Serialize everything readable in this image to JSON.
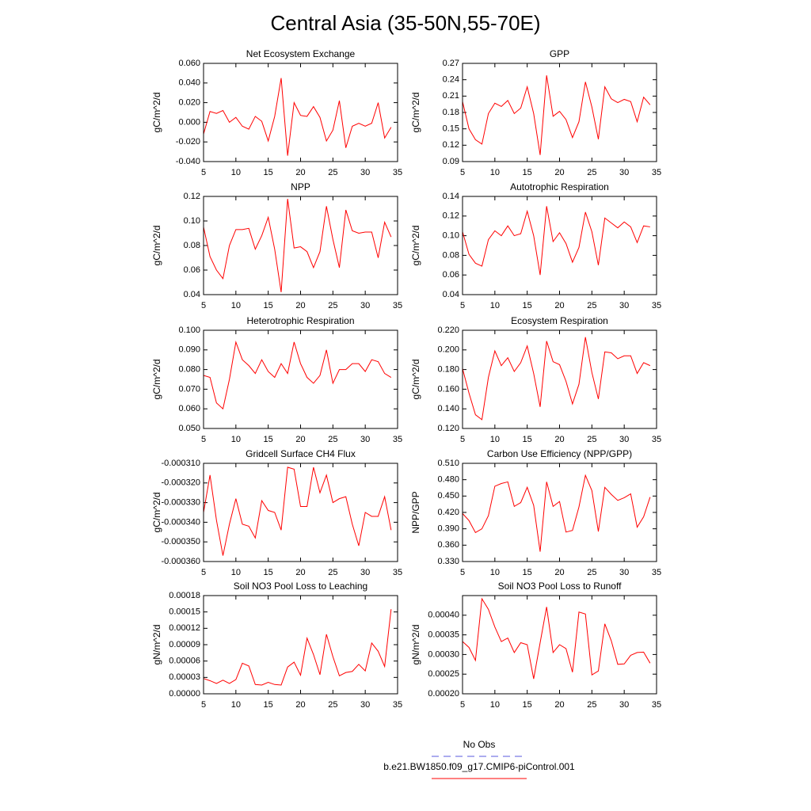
{
  "title": "Central Asia (35-50N,55-70E)",
  "legend": [
    {
      "name": "No Obs",
      "color": "#5a5adc",
      "dash": true
    },
    {
      "name": "b.e21.BW1850.f09_g17.CMIP6-piControl.001",
      "color": "#ff0000",
      "dash": false
    }
  ],
  "chart_data": [
    {
      "type": "line",
      "title": "Net Ecosystem Exchange",
      "ylabel": "gC/m^2/d",
      "color": "#ff0000",
      "x": [
        5,
        6,
        7,
        8,
        9,
        10,
        11,
        12,
        13,
        14,
        15,
        16,
        17,
        18,
        19,
        20,
        21,
        22,
        23,
        24,
        25,
        26,
        27,
        28,
        29,
        30,
        31,
        32,
        33,
        34
      ],
      "values": [
        -0.012,
        0.011,
        0.009,
        0.012,
        0.0,
        0.005,
        -0.004,
        -0.007,
        0.006,
        0.001,
        -0.019,
        0.006,
        0.045,
        -0.034,
        0.02,
        0.007,
        0.006,
        0.016,
        0.005,
        -0.019,
        -0.008,
        0.022,
        -0.026,
        -0.004,
        -0.001,
        -0.004,
        -0.001,
        0.02,
        -0.016,
        -0.005
      ],
      "xlim": [
        5,
        35
      ],
      "xticks": [
        5,
        10,
        15,
        20,
        25,
        30,
        35
      ],
      "ylim": [
        -0.04,
        0.06
      ],
      "yticks": [
        {
          "value": -0.04,
          "label": "-0.040"
        },
        {
          "value": -0.02,
          "label": "-0.020"
        },
        {
          "value": 0,
          "label": "0.000"
        },
        {
          "value": 0.02,
          "label": "0.020"
        },
        {
          "value": 0.04,
          "label": "0.040"
        },
        {
          "value": 0.06,
          "label": "0.060"
        }
      ]
    },
    {
      "type": "line",
      "title": "GPP",
      "ylabel": "gC/m^2/d",
      "color": "#ff0000",
      "x": [
        5,
        6,
        7,
        8,
        9,
        10,
        11,
        12,
        13,
        14,
        15,
        16,
        17,
        18,
        19,
        20,
        21,
        22,
        23,
        24,
        25,
        26,
        27,
        28,
        29,
        30,
        31,
        32,
        33,
        34
      ],
      "values": [
        0.2,
        0.15,
        0.13,
        0.122,
        0.178,
        0.197,
        0.191,
        0.202,
        0.178,
        0.188,
        0.227,
        0.178,
        0.102,
        0.248,
        0.173,
        0.182,
        0.167,
        0.134,
        0.163,
        0.236,
        0.19,
        0.131,
        0.227,
        0.205,
        0.198,
        0.204,
        0.2,
        0.163,
        0.208,
        0.194
      ],
      "xlim": [
        5,
        35
      ],
      "xticks": [
        5,
        10,
        15,
        20,
        25,
        30,
        35
      ],
      "ylim": [
        0.09,
        0.27
      ],
      "yticks": [
        {
          "value": 0.09,
          "label": "0.09"
        },
        {
          "value": 0.12,
          "label": "0.12"
        },
        {
          "value": 0.15,
          "label": "0.15"
        },
        {
          "value": 0.18,
          "label": "0.18"
        },
        {
          "value": 0.21,
          "label": "0.21"
        },
        {
          "value": 0.24,
          "label": "0.24"
        },
        {
          "value": 0.27,
          "label": "0.27"
        }
      ]
    },
    {
      "type": "line",
      "title": "NPP",
      "ylabel": "gC/m^2/d",
      "color": "#ff0000",
      "x": [
        5,
        6,
        7,
        8,
        9,
        10,
        11,
        12,
        13,
        14,
        15,
        16,
        17,
        18,
        19,
        20,
        21,
        22,
        23,
        24,
        25,
        26,
        27,
        28,
        29,
        30,
        31,
        32,
        33,
        34
      ],
      "values": [
        0.095,
        0.071,
        0.06,
        0.053,
        0.08,
        0.093,
        0.093,
        0.094,
        0.077,
        0.088,
        0.103,
        0.077,
        0.042,
        0.118,
        0.078,
        0.079,
        0.075,
        0.062,
        0.075,
        0.112,
        0.085,
        0.062,
        0.109,
        0.092,
        0.09,
        0.091,
        0.091,
        0.07,
        0.099,
        0.087
      ],
      "xlim": [
        5,
        35
      ],
      "xticks": [
        5,
        10,
        15,
        20,
        25,
        30,
        35
      ],
      "ylim": [
        0.04,
        0.12
      ],
      "yticks": [
        {
          "value": 0.04,
          "label": "0.04"
        },
        {
          "value": 0.06,
          "label": "0.06"
        },
        {
          "value": 0.08,
          "label": "0.08"
        },
        {
          "value": 0.1,
          "label": "0.10"
        },
        {
          "value": 0.12,
          "label": "0.12"
        }
      ]
    },
    {
      "type": "line",
      "title": "Autotrophic Respiration",
      "ylabel": "gC/m^2/d",
      "color": "#ff0000",
      "x": [
        5,
        6,
        7,
        8,
        9,
        10,
        11,
        12,
        13,
        14,
        15,
        16,
        17,
        18,
        19,
        20,
        21,
        22,
        23,
        24,
        25,
        26,
        27,
        28,
        29,
        30,
        31,
        32,
        33,
        34
      ],
      "values": [
        0.104,
        0.081,
        0.072,
        0.069,
        0.096,
        0.105,
        0.1,
        0.11,
        0.1,
        0.102,
        0.125,
        0.1,
        0.06,
        0.13,
        0.094,
        0.103,
        0.092,
        0.073,
        0.088,
        0.124,
        0.104,
        0.07,
        0.118,
        0.113,
        0.108,
        0.114,
        0.109,
        0.093,
        0.11,
        0.109
      ],
      "xlim": [
        5,
        35
      ],
      "xticks": [
        5,
        10,
        15,
        20,
        25,
        30,
        35
      ],
      "ylim": [
        0.04,
        0.14
      ],
      "yticks": [
        {
          "value": 0.04,
          "label": "0.04"
        },
        {
          "value": 0.06,
          "label": "0.06"
        },
        {
          "value": 0.08,
          "label": "0.08"
        },
        {
          "value": 0.1,
          "label": "0.10"
        },
        {
          "value": 0.12,
          "label": "0.12"
        },
        {
          "value": 0.14,
          "label": "0.14"
        }
      ]
    },
    {
      "type": "line",
      "title": "Heterotrophic Respiration",
      "ylabel": "gC/m^2/d",
      "color": "#ff0000",
      "x": [
        5,
        6,
        7,
        8,
        9,
        10,
        11,
        12,
        13,
        14,
        15,
        16,
        17,
        18,
        19,
        20,
        21,
        22,
        23,
        24,
        25,
        26,
        27,
        28,
        29,
        30,
        31,
        32,
        33,
        34
      ],
      "values": [
        0.077,
        0.076,
        0.063,
        0.06,
        0.075,
        0.094,
        0.085,
        0.082,
        0.078,
        0.085,
        0.079,
        0.076,
        0.083,
        0.078,
        0.094,
        0.083,
        0.076,
        0.073,
        0.077,
        0.09,
        0.073,
        0.08,
        0.08,
        0.083,
        0.083,
        0.079,
        0.085,
        0.084,
        0.078,
        0.076
      ],
      "xlim": [
        5,
        35
      ],
      "xticks": [
        5,
        10,
        15,
        20,
        25,
        30,
        35
      ],
      "ylim": [
        0.05,
        0.1
      ],
      "yticks": [
        {
          "value": 0.05,
          "label": "0.050"
        },
        {
          "value": 0.06,
          "label": "0.060"
        },
        {
          "value": 0.07,
          "label": "0.070"
        },
        {
          "value": 0.08,
          "label": "0.080"
        },
        {
          "value": 0.09,
          "label": "0.090"
        },
        {
          "value": 0.1,
          "label": "0.100"
        }
      ]
    },
    {
      "type": "line",
      "title": "Ecosystem Respiration",
      "ylabel": "gC/m^2/d",
      "color": "#ff0000",
      "x": [
        5,
        6,
        7,
        8,
        9,
        10,
        11,
        12,
        13,
        14,
        15,
        16,
        17,
        18,
        19,
        20,
        21,
        22,
        23,
        24,
        25,
        26,
        27,
        28,
        29,
        30,
        31,
        32,
        33,
        34
      ],
      "values": [
        0.181,
        0.156,
        0.134,
        0.129,
        0.172,
        0.199,
        0.184,
        0.192,
        0.178,
        0.187,
        0.204,
        0.176,
        0.142,
        0.209,
        0.188,
        0.185,
        0.168,
        0.145,
        0.165,
        0.213,
        0.177,
        0.15,
        0.198,
        0.197,
        0.191,
        0.194,
        0.194,
        0.176,
        0.187,
        0.184
      ],
      "xlim": [
        5,
        35
      ],
      "xticks": [
        5,
        10,
        15,
        20,
        25,
        30,
        35
      ],
      "ylim": [
        0.12,
        0.22
      ],
      "yticks": [
        {
          "value": 0.12,
          "label": "0.120"
        },
        {
          "value": 0.14,
          "label": "0.140"
        },
        {
          "value": 0.16,
          "label": "0.160"
        },
        {
          "value": 0.18,
          "label": "0.180"
        },
        {
          "value": 0.2,
          "label": "0.200"
        },
        {
          "value": 0.22,
          "label": "0.220"
        }
      ]
    },
    {
      "type": "line",
      "title": "Gridcell Surface CH4 Flux",
      "ylabel": "gC/m^2/d",
      "color": "#ff0000",
      "x": [
        5,
        6,
        7,
        8,
        9,
        10,
        11,
        12,
        13,
        14,
        15,
        16,
        17,
        18,
        19,
        20,
        21,
        22,
        23,
        24,
        25,
        26,
        27,
        28,
        29,
        30,
        31,
        32,
        33,
        34
      ],
      "values": [
        -0.000335,
        -0.000316,
        -0.000339,
        -0.000357,
        -0.000341,
        -0.000328,
        -0.000341,
        -0.000342,
        -0.000348,
        -0.000329,
        -0.000334,
        -0.000335,
        -0.000344,
        -0.000312,
        -0.000313,
        -0.000332,
        -0.000332,
        -0.000312,
        -0.000325,
        -0.000316,
        -0.00033,
        -0.000328,
        -0.000327,
        -0.000341,
        -0.000352,
        -0.000335,
        -0.000337,
        -0.000337,
        -0.000327,
        -0.000344
      ],
      "xlim": [
        5,
        35
      ],
      "xticks": [
        5,
        10,
        15,
        20,
        25,
        30,
        35
      ],
      "ylim": [
        -0.00036,
        -0.00031
      ],
      "yticks": [
        {
          "value": -0.00036,
          "label": "-0.000360"
        },
        {
          "value": -0.00035,
          "label": "-0.000350"
        },
        {
          "value": -0.00034,
          "label": "-0.000340"
        },
        {
          "value": -0.00033,
          "label": "-0.000330"
        },
        {
          "value": -0.00032,
          "label": "-0.000320"
        },
        {
          "value": -0.00031,
          "label": "-0.000310"
        }
      ]
    },
    {
      "type": "line",
      "title": "Carbon Use Efficiency (NPP/GPP)",
      "ylabel": "NPP/GPP",
      "color": "#ff0000",
      "x": [
        5,
        6,
        7,
        8,
        9,
        10,
        11,
        12,
        13,
        14,
        15,
        16,
        17,
        18,
        19,
        20,
        21,
        22,
        23,
        24,
        25,
        26,
        27,
        28,
        29,
        30,
        31,
        32,
        33,
        34
      ],
      "values": [
        0.418,
        0.405,
        0.383,
        0.39,
        0.414,
        0.468,
        0.473,
        0.476,
        0.431,
        0.438,
        0.466,
        0.433,
        0.348,
        0.476,
        0.431,
        0.44,
        0.384,
        0.387,
        0.43,
        0.488,
        0.46,
        0.385,
        0.466,
        0.453,
        0.442,
        0.447,
        0.454,
        0.393,
        0.412,
        0.448
      ],
      "xlim": [
        5,
        35
      ],
      "xticks": [
        5,
        10,
        15,
        20,
        25,
        30,
        35
      ],
      "ylim": [
        0.33,
        0.51
      ],
      "yticks": [
        {
          "value": 0.33,
          "label": "0.330"
        },
        {
          "value": 0.36,
          "label": "0.360"
        },
        {
          "value": 0.39,
          "label": "0.390"
        },
        {
          "value": 0.42,
          "label": "0.420"
        },
        {
          "value": 0.45,
          "label": "0.450"
        },
        {
          "value": 0.48,
          "label": "0.480"
        },
        {
          "value": 0.51,
          "label": "0.510"
        }
      ]
    },
    {
      "type": "line",
      "title": "Soil NO3 Pool Loss to Leaching",
      "ylabel": "gN/m^2/d",
      "color": "#ff0000",
      "x": [
        5,
        6,
        7,
        8,
        9,
        10,
        11,
        12,
        13,
        14,
        15,
        16,
        17,
        18,
        19,
        20,
        21,
        22,
        23,
        24,
        25,
        26,
        27,
        28,
        29,
        30,
        31,
        32,
        33,
        34
      ],
      "values": [
        2.8e-05,
        2.4e-05,
        1.9e-05,
        2.5e-05,
        1.9e-05,
        2.6e-05,
        5.6e-05,
        5.1e-05,
        1.7e-05,
        1.6e-05,
        2.1e-05,
        1.7e-05,
        1.6e-05,
        4.9e-05,
        5.8e-05,
        3.4e-05,
        0.000102,
        7.2e-05,
        3.5e-05,
        0.000109,
        6.8e-05,
        3.3e-05,
        3.9e-05,
        4.1e-05,
        5.4e-05,
        4.2e-05,
        9.3e-05,
        7.8e-05,
        5e-05,
        0.000155
      ],
      "xlim": [
        5,
        35
      ],
      "xticks": [
        5,
        10,
        15,
        20,
        25,
        30,
        35
      ],
      "ylim": [
        0,
        0.00018
      ],
      "yticks": [
        {
          "value": 0,
          "label": "0.00000"
        },
        {
          "value": 3e-05,
          "label": "0.00003"
        },
        {
          "value": 6e-05,
          "label": "0.00006"
        },
        {
          "value": 9e-05,
          "label": "0.00009"
        },
        {
          "value": 0.00012,
          "label": "0.00012"
        },
        {
          "value": 0.00015,
          "label": "0.00015"
        },
        {
          "value": 0.00018,
          "label": "0.00018"
        }
      ]
    },
    {
      "type": "line",
      "title": "Soil NO3 Pool Loss to Runoff",
      "ylabel": "gN/m^2/d",
      "color": "#ff0000",
      "x": [
        5,
        6,
        7,
        8,
        9,
        10,
        11,
        12,
        13,
        14,
        15,
        16,
        17,
        18,
        19,
        20,
        21,
        22,
        23,
        24,
        25,
        26,
        27,
        28,
        29,
        30,
        31,
        32,
        33,
        34
      ],
      "values": [
        0.000333,
        0.000318,
        0.000285,
        0.000442,
        0.000415,
        0.00037,
        0.000333,
        0.000342,
        0.000305,
        0.00033,
        0.000325,
        0.000238,
        0.00033,
        0.000421,
        0.000305,
        0.000325,
        0.000315,
        0.000255,
        0.000408,
        0.000403,
        0.000248,
        0.000258,
        0.000378,
        0.000335,
        0.000275,
        0.000276,
        0.000298,
        0.000305,
        0.000306,
        0.000278
      ],
      "xlim": [
        5,
        35
      ],
      "xticks": [
        5,
        10,
        15,
        20,
        25,
        30,
        35
      ],
      "ylim": [
        0.0002,
        0.00045
      ],
      "yticks": [
        {
          "value": 0.0002,
          "label": "0.00020"
        },
        {
          "value": 0.00025,
          "label": "0.00025"
        },
        {
          "value": 0.0003,
          "label": "0.00030"
        },
        {
          "value": 0.00035,
          "label": "0.00035"
        },
        {
          "value": 0.0004,
          "label": "0.00040"
        }
      ]
    }
  ]
}
